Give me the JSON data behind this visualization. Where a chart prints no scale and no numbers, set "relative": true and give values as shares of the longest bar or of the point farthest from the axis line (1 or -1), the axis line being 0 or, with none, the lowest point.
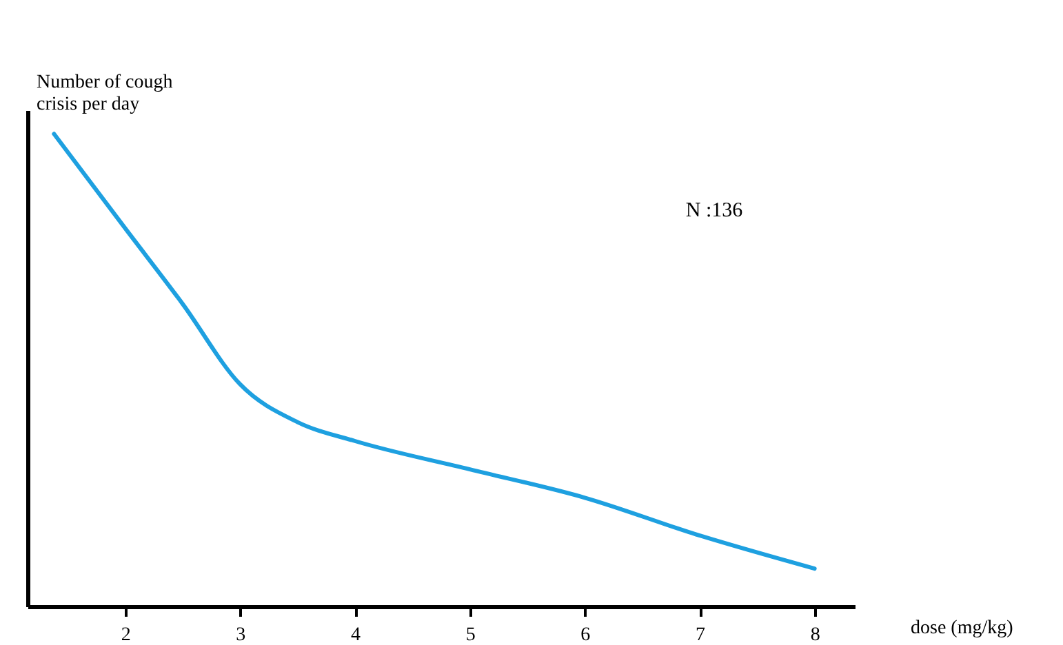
{
  "chart_data": {
    "type": "line",
    "relative": true,
    "xlabel": "dose (mg/kg)",
    "ylabel": "Number of cough crisis per day",
    "x": [
      1.38,
      2,
      2.5,
      3,
      3.5,
      4,
      5,
      6,
      7,
      8
    ],
    "series": [
      {
        "color": "#1ea0e0",
        "values": [
          1,
          0.8,
          0.64,
          0.47,
          0.39,
          0.35,
          0.29,
          0.23,
          0.15,
          0.08
        ]
      }
    ],
    "xlim": [
      1.15,
      8.35
    ],
    "xticks": [
      2,
      3,
      4,
      5,
      6,
      7,
      8
    ],
    "annotations": [
      "N :136"
    ],
    "grid": false,
    "marker": "none",
    "line_style": "solid"
  }
}
